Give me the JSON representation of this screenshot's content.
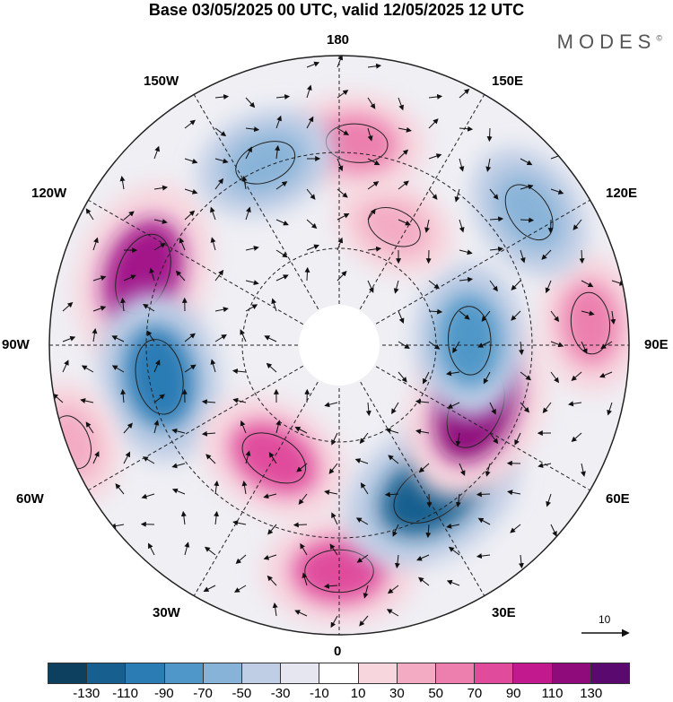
{
  "title": "Base 03/05/2025 00 UTC, valid 12/05/2025 12 UTC",
  "brand": "MODES",
  "brand_mark": "©",
  "longitude_labels": {
    "top": "180",
    "bottom": "0",
    "left": "90W",
    "right": "90E",
    "upper_left_1": "150W",
    "upper_left_2": "120W",
    "upper_right_1": "150E",
    "upper_right_2": "120E",
    "lower_left_1": "60W",
    "lower_left_2": "30W",
    "lower_right_1": "60E",
    "lower_right_2": "30E"
  },
  "vector_scale_label": "10",
  "colorbar": {
    "ticks": [
      "-130",
      "-110",
      "-90",
      "-70",
      "-50",
      "-30",
      "-10",
      "10",
      "30",
      "50",
      "70",
      "90",
      "110",
      "130"
    ],
    "colors": [
      "#0d3f5e",
      "#175f8e",
      "#2b7bb5",
      "#4f97c8",
      "#88b3d8",
      "#bfcde5",
      "#e6e6f0",
      "#ffffff",
      "#f7d6de",
      "#f3abc3",
      "#ec7fad",
      "#e04b9c",
      "#c21a8e",
      "#8f0b7c",
      "#5a0a6e"
    ]
  },
  "anomalies": [
    {
      "lon_deg": -110,
      "radius": 0.72,
      "value": 110,
      "color": "#a2198a"
    },
    {
      "lon_deg": -80,
      "radius": 0.63,
      "value": -90,
      "color": "#2b7bb5"
    },
    {
      "lon_deg": -30,
      "radius": 0.45,
      "value": 70,
      "color": "#e04b9c"
    },
    {
      "lon_deg": 0,
      "radius": 0.78,
      "value": 70,
      "color": "#e04b9c"
    },
    {
      "lon_deg": 32,
      "radius": 0.6,
      "value": -110,
      "color": "#175f8e"
    },
    {
      "lon_deg": 65,
      "radius": 0.52,
      "value": 110,
      "color": "#8f0b7c"
    },
    {
      "lon_deg": 92,
      "radius": 0.45,
      "value": -70,
      "color": "#4f97c8"
    },
    {
      "lon_deg": 95,
      "radius": 0.87,
      "value": 50,
      "color": "#ec7fad"
    },
    {
      "lon_deg": 125,
      "radius": 0.8,
      "value": -50,
      "color": "#88b3d8"
    },
    {
      "lon_deg": 155,
      "radius": 0.45,
      "value": 30,
      "color": "#f3abc3"
    },
    {
      "lon_deg": 175,
      "radius": 0.7,
      "value": 50,
      "color": "#ec7fad"
    },
    {
      "lon_deg": -158,
      "radius": 0.68,
      "value": -50,
      "color": "#88b3d8"
    },
    {
      "lon_deg": -70,
      "radius": 0.98,
      "value": 30,
      "color": "#f3abc3"
    }
  ]
}
